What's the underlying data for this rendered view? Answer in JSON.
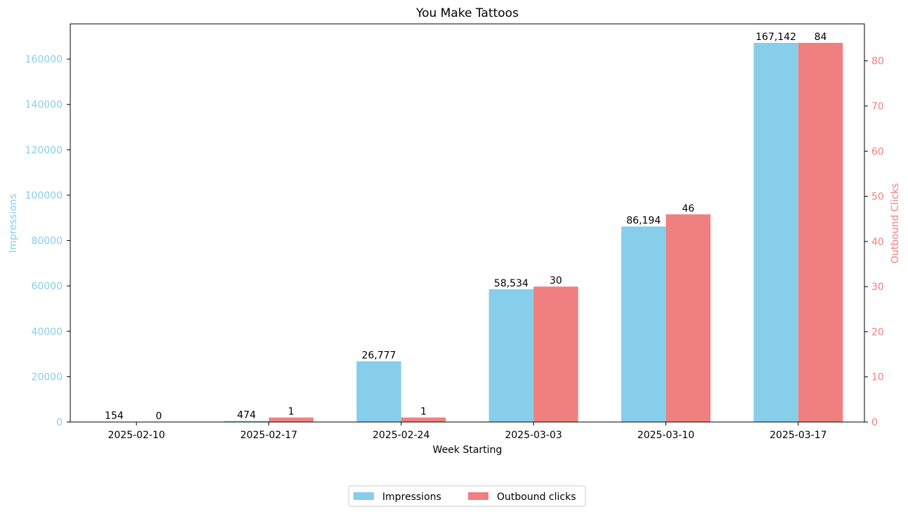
{
  "chart_data": {
    "type": "bar",
    "title": "You Make Tattoos",
    "xlabel": "Week Starting",
    "ylabel_left": "Impressions",
    "ylabel_right": "Outbound Clicks",
    "categories": [
      "2025-02-10",
      "2025-02-17",
      "2025-02-24",
      "2025-03-03",
      "2025-03-10",
      "2025-03-17"
    ],
    "series": [
      {
        "name": "Impressions",
        "axis": "left",
        "color": "#87CEEB",
        "values": [
          154,
          474,
          26777,
          58534,
          86194,
          167142
        ],
        "labels": [
          "154",
          "474",
          "26,777",
          "58,534",
          "86,194",
          "167,142"
        ]
      },
      {
        "name": "Outbound clicks",
        "axis": "right",
        "color": "#F08080",
        "values": [
          0,
          1,
          1,
          30,
          46,
          84
        ],
        "labels": [
          "0",
          "1",
          "1",
          "30",
          "46",
          "84"
        ]
      }
    ],
    "ylim_left": [
      0,
      175500
    ],
    "yticks_left": [
      "0",
      "20000",
      "40000",
      "60000",
      "80000",
      "100000",
      "120000",
      "140000",
      "160000"
    ],
    "ylim_right": [
      0,
      88.2
    ],
    "yticks_right": [
      "0",
      "10",
      "20",
      "30",
      "40",
      "50",
      "60",
      "70",
      "80"
    ],
    "left_axis_color": "#87CEEB",
    "right_axis_color": "#F08080",
    "grid": false,
    "legend_position": "bottom-center"
  }
}
